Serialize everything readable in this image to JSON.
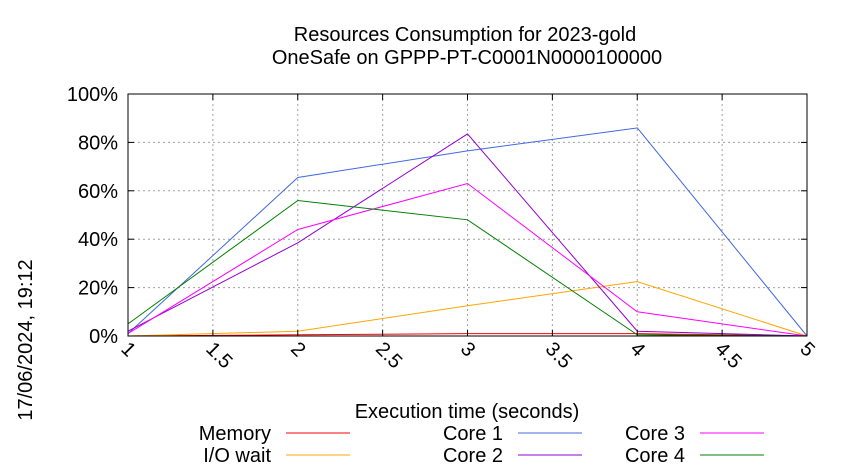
{
  "chart_data": {
    "type": "line",
    "title": [
      "Resources Consumption for 2023-gold",
      "OneSafe on GPPP-PT-C0001N0000100000"
    ],
    "xlabel": "Execution time (seconds)",
    "ylabel": "",
    "xlim": [
      1,
      5
    ],
    "ylim": [
      0,
      100
    ],
    "x_ticks": [
      "1",
      "1.5",
      "2",
      "2.5",
      "3",
      "3.5",
      "4",
      "4.5",
      "5"
    ],
    "y_ticks": [
      "0%",
      "20%",
      "40%",
      "60%",
      "80%",
      "100%"
    ],
    "grid": true,
    "legend_position": "bottom",
    "x": [
      1,
      2,
      3,
      4,
      5
    ],
    "series": [
      {
        "name": "Memory",
        "color": "#ff0000",
        "values": [
          0,
          0.5,
          1,
          1,
          0
        ]
      },
      {
        "name": "I/O wait",
        "color": "#ffa500",
        "values": [
          0,
          2,
          12.5,
          22.5,
          0
        ]
      },
      {
        "name": "Core 1",
        "color": "#4169e1",
        "values": [
          1,
          65.5,
          76.5,
          86,
          0
        ]
      },
      {
        "name": "Core 2",
        "color": "#9400d3",
        "values": [
          2,
          38.5,
          83.5,
          2,
          0
        ]
      },
      {
        "name": "Core 3",
        "color": "#ff00ff",
        "values": [
          1,
          44,
          63,
          10,
          0
        ]
      },
      {
        "name": "Core 4",
        "color": "#008000",
        "values": [
          5,
          56,
          48,
          0.5,
          0
        ]
      }
    ]
  },
  "timestamp": "17/06/2024, 19:12"
}
